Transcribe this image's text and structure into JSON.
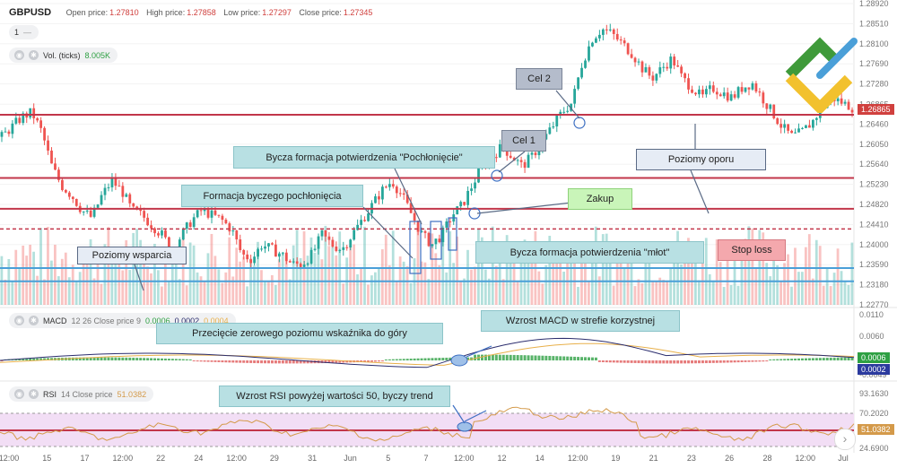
{
  "header": {
    "symbol": "GBPUSD",
    "open_label": "Open price:",
    "open_value": "1.27810",
    "high_label": "High price:",
    "high_value": "1.27858",
    "low_label": "Low price:",
    "low_value": "1.27297",
    "close_label": "Close price:",
    "close_value": "1.27345"
  },
  "legend": {
    "interval_value": "1",
    "interval_dash": "—",
    "volume_label": "Vol. (ticks)",
    "volume_value": "8.005K",
    "macd_label": "MACD",
    "macd_params": "12 26 Close price 9",
    "macd_v1": "0.0006",
    "macd_v2": "0.0002",
    "macd_v3": "0.0004",
    "rsi_label": "RSI",
    "rsi_params": "14 Close price",
    "rsi_value": "51.0382"
  },
  "colors": {
    "candle_up": "#26a69a",
    "candle_down": "#ef5350",
    "resistance_line": "#c2364a",
    "support_line": "#4a9fd8",
    "stoploss_line": "#c2364a",
    "macd_line": "#2b2d6e",
    "signal_line": "#e8b04a",
    "rsi_line": "#d49a4a",
    "rsi_band": "#f2def5",
    "callout_teal": "#b8e0e3",
    "callout_gray": "#b4bccb",
    "callout_green": "#c9f5b9",
    "callout_red": "#f4a8ad",
    "callout_blue": "#e6ecf5"
  },
  "icons": [
    "eye-icon",
    "gear-icon",
    "chevron-right-icon",
    "logo-icon"
  ],
  "annotations": {
    "cel2": "Cel 2",
    "cel1": "Cel 1",
    "bullish_engulf_confirm": "Bycza formacja potwierdzenia \"Pochłonięcie\"",
    "bullish_engulf": "Formacja byczego pochłonięcia",
    "zakup": "Zakup",
    "poziomy_oporu": "Poziomy oporu",
    "poziomy_wsparcia": "Poziomy wsparcia",
    "hammer_confirm": "Bycza formacja potwierdzenia \"młot\"",
    "stop_loss": "Stop loss",
    "macd_growth": "Wzrost MACD w strefie korzystnej",
    "zero_cross": "Przecięcie zerowego poziomu wskaźnika do góry",
    "rsi_growth": "Wzrost RSI powyżej wartości 50, byczy trend"
  },
  "chart_data": [
    {
      "type": "candlestick",
      "series": [
        {
          "name": "GBPUSD",
          "symbol": "GBPUSD"
        }
      ],
      "y_ticks": [
        "1.28920",
        "1.28510",
        "1.28100",
        "1.27690",
        "1.27280",
        "1.26865",
        "1.26460",
        "1.26050",
        "1.25640",
        "1.25230",
        "1.24820",
        "1.24410",
        "1.24000",
        "1.23590",
        "1.23180",
        "1.22770"
      ],
      "ylim": [
        1.2277,
        1.2892
      ],
      "current_price": "1.26865",
      "x_ticks": [
        "12:00",
        "15",
        "17",
        "12:00",
        "22",
        "24",
        "12:00",
        "29",
        "31",
        "Jun",
        "5",
        "7",
        "12:00",
        "12",
        "14",
        "12:00",
        "19",
        "21",
        "23",
        "26",
        "28",
        "12:00",
        "Jul"
      ],
      "levels": {
        "resistance": [
          1.2665,
          1.2536
        ],
        "support": [
          1.2352,
          1.2325
        ],
        "entry": 1.2473,
        "stop_loss": 1.2432
      },
      "close_path": [
        1.262,
        1.264,
        1.266,
        1.267,
        1.263,
        1.256,
        1.252,
        1.25,
        1.247,
        1.2455,
        1.25,
        1.253,
        1.251,
        1.247,
        1.246,
        1.244,
        1.242,
        1.239,
        1.242,
        1.245,
        1.247,
        1.246,
        1.245,
        1.243,
        1.238,
        1.237,
        1.24,
        1.239,
        1.238,
        1.236,
        1.236,
        1.238,
        1.242,
        1.24,
        1.239,
        1.242,
        1.245,
        1.248,
        1.251,
        1.253,
        1.25,
        1.246,
        1.242,
        1.24,
        1.242,
        1.246,
        1.248,
        1.252,
        1.256,
        1.258,
        1.26,
        1.258,
        1.256,
        1.258,
        1.261,
        1.264,
        1.267,
        1.269,
        1.277,
        1.282,
        1.284,
        1.283,
        1.281,
        1.279,
        1.276,
        1.274,
        1.276,
        1.278,
        1.274,
        1.272,
        1.27,
        1.272,
        1.271,
        1.27,
        1.272,
        1.273,
        1.27,
        1.267,
        1.264,
        1.262,
        1.263,
        1.265,
        1.268,
        1.27,
        1.269,
        1.268
      ]
    },
    {
      "type": "bar",
      "series": [
        {
          "name": "Vol. (ticks)"
        }
      ],
      "last_value": "8.005K"
    },
    {
      "type": "line",
      "series": [
        {
          "name": "MACD"
        },
        {
          "name": "Signal"
        }
      ],
      "y_ticks": [
        "0.0110",
        "0.0060",
        "0.0006",
        "0.0002",
        "-0.0049"
      ],
      "last_values": [
        "0.0006",
        "0.0002"
      ]
    },
    {
      "type": "line",
      "series": [
        {
          "name": "RSI"
        }
      ],
      "y_ticks": [
        "93.1630",
        "70.2020",
        "51.0382",
        "24.6900"
      ],
      "last_value": "51.0382"
    }
  ]
}
